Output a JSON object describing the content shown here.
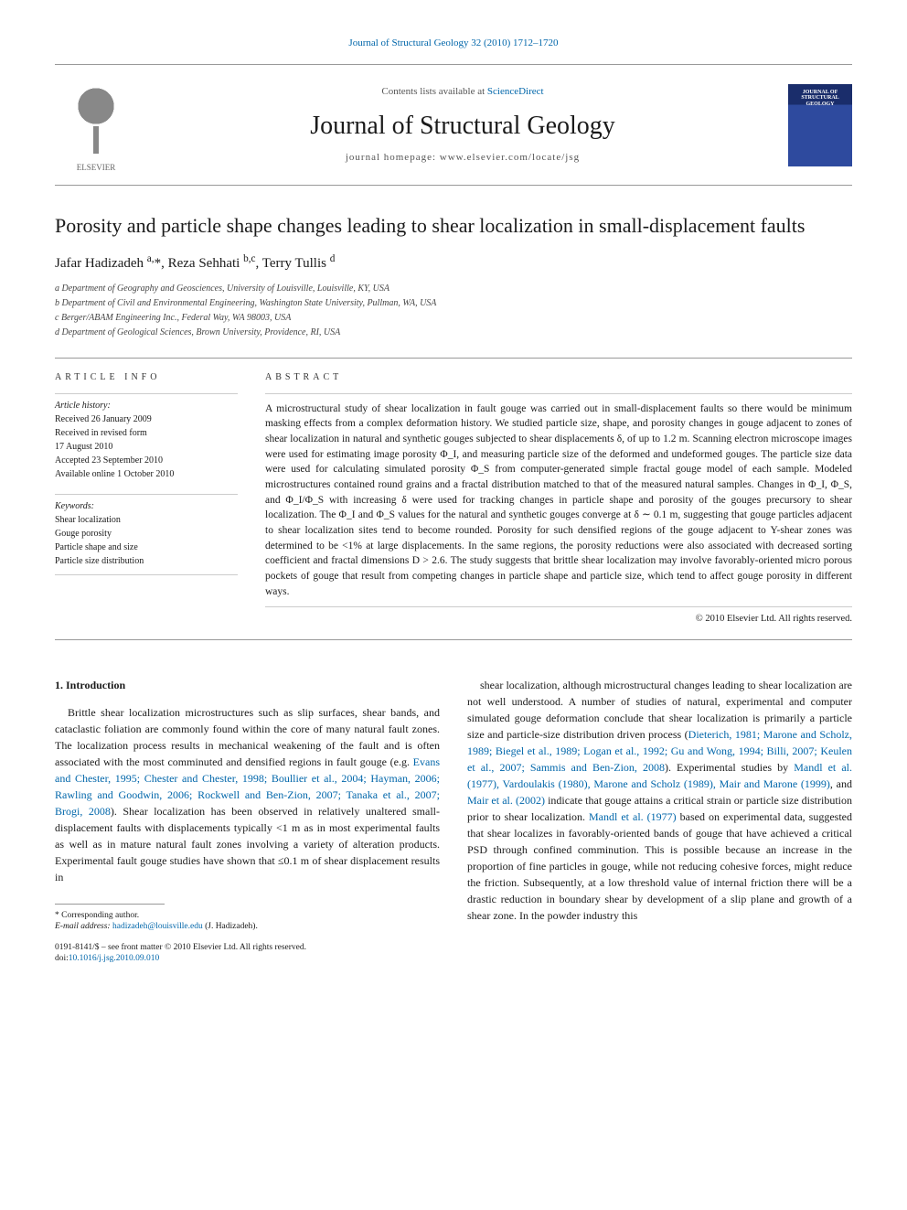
{
  "journal_ref": "Journal of Structural Geology 32 (2010) 1712–1720",
  "masthead": {
    "contents_prefix": "Contents lists available at ",
    "contents_link": "ScienceDirect",
    "journal_name": "Journal of Structural Geology",
    "homepage_prefix": "journal homepage: ",
    "homepage": "www.elsevier.com/locate/jsg",
    "publisher_mark": "ELSEVIER",
    "cover_text": "JOURNAL OF STRUCTURAL GEOLOGY"
  },
  "article": {
    "title": "Porosity and particle shape changes leading to shear localization in small-displacement faults",
    "authors_html": "Jafar Hadizadeh <sup>a,</sup>*, Reza Sehhati <sup>b,c</sup>, Terry Tullis <sup>d</sup>",
    "affiliations": [
      "a Department of Geography and Geosciences, University of Louisville, Louisville, KY, USA",
      "b Department of Civil and Environmental Engineering, Washington State University, Pullman, WA, USA",
      "c Berger/ABAM Engineering Inc., Federal Way, WA 98003, USA",
      "d Department of Geological Sciences, Brown University, Providence, RI, USA"
    ]
  },
  "info": {
    "label": "ARTICLE INFO",
    "history_label": "Article history:",
    "history": [
      "Received 26 January 2009",
      "Received in revised form",
      "17 August 2010",
      "Accepted 23 September 2010",
      "Available online 1 October 2010"
    ],
    "keywords_label": "Keywords:",
    "keywords": [
      "Shear localization",
      "Gouge porosity",
      "Particle shape and size",
      "Particle size distribution"
    ]
  },
  "abstract": {
    "label": "ABSTRACT",
    "body": "A microstructural study of shear localization in fault gouge was carried out in small-displacement faults so there would be minimum masking effects from a complex deformation history. We studied particle size, shape, and porosity changes in gouge adjacent to zones of shear localization in natural and synthetic gouges subjected to shear displacements δ, of up to 1.2 m. Scanning electron microscope images were used for estimating image porosity Φ_I, and measuring particle size of the deformed and undeformed gouges. The particle size data were used for calculating simulated porosity Φ_S from computer-generated simple fractal gouge model of each sample. Modeled microstructures contained round grains and a fractal distribution matched to that of the measured natural samples. Changes in Φ_I, Φ_S, and Φ_I/Φ_S with increasing δ were used for tracking changes in particle shape and porosity of the gouges precursory to shear localization. The Φ_I and Φ_S values for the natural and synthetic gouges converge at δ ∼ 0.1 m, suggesting that gouge particles adjacent to shear localization sites tend to become rounded. Porosity for such densified regions of the gouge adjacent to Y-shear zones was determined to be <1% at large displacements. In the same regions, the porosity reductions were also associated with decreased sorting coefficient and fractal dimensions D > 2.6. The study suggests that brittle shear localization may involve favorably-oriented micro porous pockets of gouge that result from competing changes in particle shape and particle size, which tend to affect gouge porosity in different ways.",
    "copyright": "© 2010 Elsevier Ltd. All rights reserved."
  },
  "body": {
    "heading": "1. Introduction",
    "col1": "Brittle shear localization microstructures such as slip surfaces, shear bands, and cataclastic foliation are commonly found within the core of many natural fault zones. The localization process results in mechanical weakening of the fault and is often associated with the most comminuted and densified regions in fault gouge (e.g. <span class=\"ref-link\">Evans and Chester, 1995; Chester and Chester, 1998; Boullier et al., 2004; Hayman, 2006; Rawling and Goodwin, 2006; Rockwell and Ben-Zion, 2007; Tanaka et al., 2007; Brogi, 2008</span>). Shear localization has been observed in relatively unaltered small-displacement faults with displacements typically <1 m as in most experimental faults as well as in mature natural fault zones involving a variety of alteration products. Experimental fault gouge studies have shown that ≤0.1 m of shear displacement results in",
    "col2": "shear localization, although microstructural changes leading to shear localization are not well understood. A number of studies of natural, experimental and computer simulated gouge deformation conclude that shear localization is primarily a particle size and particle-size distribution driven process (<span class=\"ref-link\">Dieterich, 1981; Marone and Scholz, 1989; Biegel et al., 1989; Logan et al., 1992; Gu and Wong, 1994; Billi, 2007; Keulen et al., 2007; Sammis and Ben-Zion, 2008</span>). Experimental studies by <span class=\"ref-link\">Mandl et al. (1977), Vardoulakis (1980), Marone and Scholz (1989), Mair and Marone (1999)</span>, and <span class=\"ref-link\">Mair et al. (2002)</span> indicate that gouge attains a critical strain or particle size distribution prior to shear localization. <span class=\"ref-link\">Mandl et al. (1977)</span> based on experimental data, suggested that shear localizes in favorably-oriented bands of gouge that have achieved a critical PSD through confined comminution. This is possible because an increase in the proportion of fine particles in gouge, while not reducing cohesive forces, might reduce the friction. Subsequently, at a low threshold value of internal friction there will be a drastic reduction in boundary shear by development of a slip plane and growth of a shear zone. In the powder industry this"
  },
  "footnote": {
    "corr": "* Corresponding author.",
    "email_label": "E-mail address: ",
    "email": "hadizadeh@louisville.edu",
    "email_suffix": " (J. Hadizadeh)."
  },
  "issn": {
    "line1": "0191-8141/$ – see front matter © 2010 Elsevier Ltd. All rights reserved.",
    "doi_label": "doi:",
    "doi": "10.1016/j.jsg.2010.09.010"
  },
  "colors": {
    "link": "#0066aa",
    "text": "#1a1a1a",
    "rule": "#999999",
    "cover_top": "#1a2d6b",
    "cover_bottom": "#2e4a9e"
  },
  "typography": {
    "body_pt": 12,
    "title_pt": 22,
    "journal_name_pt": 28,
    "abstract_pt": 11.5,
    "affil_pt": 10,
    "footnote_pt": 9.5
  }
}
